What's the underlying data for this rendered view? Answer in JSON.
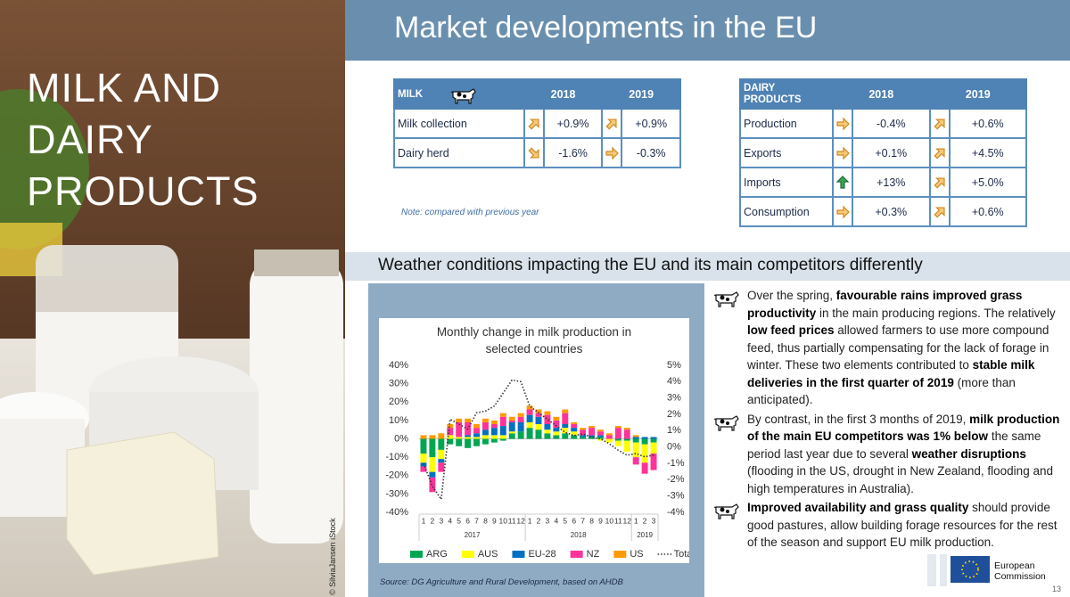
{
  "slide_title": "MILK AND DAIRY PRODUCTS",
  "photo_credit": "© SilviaJansen iStock",
  "header": {
    "title": "Market developments in the EU"
  },
  "milk_table": {
    "header": [
      "MILK",
      "2018",
      "2019"
    ],
    "rows": [
      [
        "Milk collection",
        "+0.9%",
        "+0.9%"
      ],
      [
        "Dairy herd",
        "-1.6%",
        "-0.3%"
      ]
    ],
    "note": "Note: compared with previous year"
  },
  "dairy_table": {
    "header": [
      "DAIRY PRODUCTS",
      "2018",
      "2019"
    ],
    "rows": [
      [
        "Production",
        "-0.4%",
        "+0.6%"
      ],
      [
        "Exports",
        "+0.1%",
        "+4.5%"
      ],
      [
        "Imports",
        "+13%",
        "+5.0%"
      ],
      [
        "Consumption",
        "+0.3%",
        "+0.6%"
      ]
    ]
  },
  "section_heading": "Weather conditions impacting the EU and its main competitors differently",
  "chart_data": {
    "type": "stacked-bar-line",
    "title": "Monthly change in milk production in selected countries",
    "categories": [
      "1",
      "2",
      "3",
      "4",
      "5",
      "6",
      "7",
      "8",
      "9",
      "10",
      "11",
      "12",
      "1",
      "2",
      "3",
      "4",
      "5",
      "6",
      "7",
      "8",
      "9",
      "10",
      "11",
      "12",
      "1",
      "2",
      "3"
    ],
    "x_groups": [
      "2017",
      "2018",
      "2019"
    ],
    "series": [
      {
        "name": "ARG",
        "color": "#00a651",
        "values": [
          -8,
          -10,
          -6,
          -3,
          -4,
          -5,
          -4,
          -3,
          -2,
          -1,
          3,
          4,
          6,
          5,
          3,
          2,
          3,
          2,
          1,
          1,
          1,
          0,
          -1,
          -1,
          -2,
          -3,
          -2
        ]
      },
      {
        "name": "AUS",
        "color": "#ffff00",
        "values": [
          -5,
          -8,
          -5,
          2,
          1,
          1,
          1,
          2,
          2,
          2,
          1,
          0,
          3,
          3,
          2,
          2,
          3,
          2,
          0,
          0,
          -1,
          -2,
          -3,
          -6,
          -8,
          -10,
          -6
        ]
      },
      {
        "name": "EU-28",
        "color": "#0070c0",
        "values": [
          -2,
          -3,
          -2,
          0,
          0,
          1,
          2,
          3,
          4,
          5,
          5,
          5,
          4,
          4,
          3,
          2,
          2,
          2,
          1,
          1,
          1,
          0,
          0,
          0,
          1,
          1,
          1
        ]
      },
      {
        "name": "NZ",
        "color": "#ff3399",
        "values": [
          -3,
          -8,
          -5,
          4,
          8,
          7,
          3,
          4,
          2,
          5,
          1,
          3,
          3,
          2,
          5,
          4,
          6,
          2,
          3,
          4,
          2,
          2,
          6,
          5,
          -4,
          -6,
          -9
        ]
      },
      {
        "name": "US",
        "color": "#ff9900",
        "values": [
          2,
          2,
          3,
          2,
          2,
          2,
          2,
          2,
          2,
          2,
          2,
          2,
          2,
          2,
          2,
          2,
          2,
          1,
          1,
          1,
          1,
          1,
          1,
          1,
          1,
          0,
          0
        ]
      },
      {
        "name": "Total",
        "color": "#333333",
        "type": "line",
        "axis": "y2",
        "style": "dotted",
        "values": [
          -1.0,
          -2.4,
          -3.2,
          1.7,
          1.4,
          1.1,
          2.1,
          2.2,
          2.5,
          3.3,
          4.1,
          4.0,
          2.5,
          2.1,
          1.7,
          1.3,
          0.9,
          0.7,
          0.8,
          0.6,
          0.5,
          0.2,
          -0.2,
          -0.5,
          -0.4,
          -0.6,
          -0.5
        ]
      }
    ],
    "ylim": [
      -40,
      40
    ],
    "yticks": [
      {
        "value": -40,
        "label": "-40%"
      },
      {
        "value": -30,
        "label": "-30%"
      },
      {
        "value": -20,
        "label": "-20%"
      },
      {
        "value": -10,
        "label": "-10%"
      },
      {
        "value": 0,
        "label": "0%"
      },
      {
        "value": 10,
        "label": "10%"
      },
      {
        "value": 20,
        "label": "20%"
      },
      {
        "value": 30,
        "label": "30%"
      },
      {
        "value": 40,
        "label": "40%"
      }
    ],
    "y2lim": [
      -4,
      5
    ],
    "y2ticks": [
      {
        "value": -4,
        "label": "-4%"
      },
      {
        "value": -3,
        "label": "-3%"
      },
      {
        "value": -2,
        "label": "-2%"
      },
      {
        "value": -1,
        "label": "-1%"
      },
      {
        "value": 0,
        "label": "0%"
      },
      {
        "value": 1,
        "label": "1%"
      },
      {
        "value": 2,
        "label": "2%"
      },
      {
        "value": 3,
        "label": "3%"
      },
      {
        "value": 4,
        "label": "4%"
      },
      {
        "value": 5,
        "label": "5%"
      }
    ],
    "grid": false,
    "legend": "bottom"
  },
  "source": "Source: DG Agriculture and Rural Development, based on AHDB",
  "bullets": [
    [
      {
        "text": "Over the spring, "
      },
      {
        "text": "favourable rains improved grass productivity",
        "bold": true
      },
      {
        "text": " in the main producing regions. The relatively "
      },
      {
        "text": "low feed prices",
        "bold": true
      },
      {
        "text": " allowed farmers to use more compound feed, thus partially compensating for the lack of forage in winter. These two elements contributed to "
      },
      {
        "text": "stable milk deliveries in the first quarter of 2019",
        "bold": true
      },
      {
        "text": " (more than anticipated)."
      }
    ],
    [
      {
        "text": "By contrast, in the first 3 months of 2019, "
      },
      {
        "text": "milk production of the main EU competitors was 1% below",
        "bold": true
      },
      {
        "text": " the same period last year due to several "
      },
      {
        "text": "weather disruptions",
        "bold": true
      },
      {
        "text": " (flooding in the US, drought in New Zealand, flooding and high temperatures in Australia)."
      }
    ],
    [
      {
        "text": "Improved availability and grass quality",
        "bold": true
      },
      {
        "text": " should provide good pastures, allow building forage resources for the rest of the season and support EU milk production."
      }
    ]
  ],
  "footer": {
    "logo": "European Commission",
    "page_number": "13"
  }
}
